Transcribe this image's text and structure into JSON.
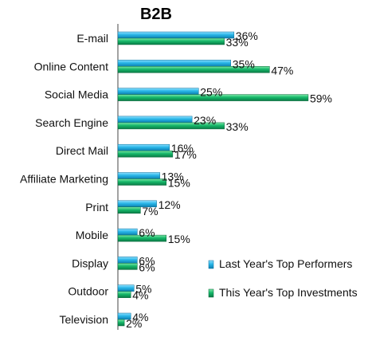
{
  "chart_data": {
    "type": "bar",
    "orientation": "horizontal",
    "title": "B2B",
    "categories": [
      "E-mail",
      "Online Content",
      "Social Media",
      "Search Engine",
      "Direct Mail",
      "Affiliate Marketing",
      "Print",
      "Mobile",
      "Display",
      "Outdoor",
      "Television"
    ],
    "series": [
      {
        "name": "Last Year's Top Performers",
        "color": "#29b6e8",
        "values": [
          36,
          35,
          25,
          23,
          16,
          13,
          12,
          6,
          6,
          5,
          4
        ],
        "labels": [
          "36%",
          "35%",
          "25%",
          "23%",
          "16%",
          "13%",
          "12%",
          "6%",
          "6%",
          "5%",
          "4%"
        ]
      },
      {
        "name": "This Year's Top Investments",
        "color": "#16b86a",
        "values": [
          33,
          47,
          59,
          33,
          17,
          15,
          7,
          15,
          6,
          4,
          2
        ],
        "labels": [
          "33%",
          "47%",
          "59%",
          "33%",
          "17%",
          "15%",
          "7%",
          "15%",
          "6%",
          "4%",
          "2%"
        ]
      }
    ],
    "xlim": [
      0,
      60
    ],
    "grid": false,
    "legend": "bottom-right"
  }
}
